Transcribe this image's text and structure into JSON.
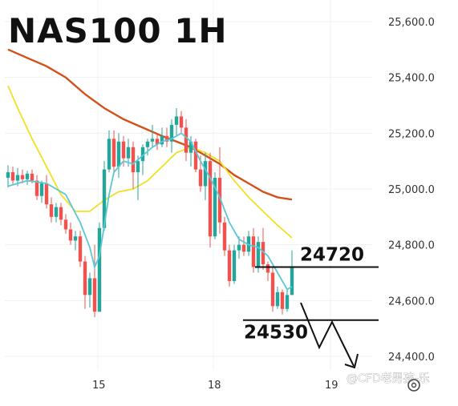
{
  "chart_data": {
    "type": "candlestick",
    "title": "NAS100 1H",
    "y_ticks": [
      "25,600.0",
      "25,400.0",
      "25,200.0",
      "25,000.0",
      "24,800.0",
      "24,600.0",
      "24,400.0"
    ],
    "x_ticks": [
      "15",
      "18",
      "19"
    ],
    "ylim": [
      24320,
      25640
    ],
    "grid": true,
    "colors": {
      "up": "#26a69a",
      "down": "#ef5350",
      "ma_fast": "#5bc8d6",
      "ma_mid": "#f2e021",
      "ma_slow": "#d2501a"
    },
    "candles": [
      {
        "o": 25040,
        "h": 25085,
        "l": 25005,
        "c": 25060
      },
      {
        "o": 25060,
        "h": 25080,
        "l": 25015,
        "c": 25030
      },
      {
        "o": 25030,
        "h": 25075,
        "l": 25010,
        "c": 25050
      },
      {
        "o": 25050,
        "h": 25070,
        "l": 25020,
        "c": 25035
      },
      {
        "o": 25035,
        "h": 25065,
        "l": 25015,
        "c": 25055
      },
      {
        "o": 25055,
        "h": 25070,
        "l": 25020,
        "c": 25030
      },
      {
        "o": 25030,
        "h": 25050,
        "l": 24960,
        "c": 24975
      },
      {
        "o": 24975,
        "h": 25030,
        "l": 24950,
        "c": 25020
      },
      {
        "o": 25020,
        "h": 25050,
        "l": 24930,
        "c": 24945
      },
      {
        "o": 24945,
        "h": 24970,
        "l": 24880,
        "c": 24900
      },
      {
        "o": 24900,
        "h": 24950,
        "l": 24880,
        "c": 24935
      },
      {
        "o": 24935,
        "h": 24950,
        "l": 24870,
        "c": 24890
      },
      {
        "o": 24890,
        "h": 24910,
        "l": 24840,
        "c": 24855
      },
      {
        "o": 24855,
        "h": 24880,
        "l": 24800,
        "c": 24815
      },
      {
        "o": 24815,
        "h": 24850,
        "l": 24780,
        "c": 24830
      },
      {
        "o": 24830,
        "h": 24850,
        "l": 24720,
        "c": 24740
      },
      {
        "o": 24740,
        "h": 24760,
        "l": 24570,
        "c": 24620
      },
      {
        "o": 24620,
        "h": 24700,
        "l": 24575,
        "c": 24680
      },
      {
        "o": 24680,
        "h": 24800,
        "l": 24540,
        "c": 24560
      },
      {
        "o": 24560,
        "h": 24880,
        "l": 24560,
        "c": 24860
      },
      {
        "o": 24860,
        "h": 25100,
        "l": 24850,
        "c": 25070
      },
      {
        "o": 25070,
        "h": 25210,
        "l": 25060,
        "c": 25180
      },
      {
        "o": 25180,
        "h": 25210,
        "l": 25050,
        "c": 25080
      },
      {
        "o": 25080,
        "h": 25200,
        "l": 25040,
        "c": 25170
      },
      {
        "o": 25170,
        "h": 25190,
        "l": 25080,
        "c": 25110
      },
      {
        "o": 25110,
        "h": 25180,
        "l": 25080,
        "c": 25150
      },
      {
        "o": 25150,
        "h": 25170,
        "l": 25000,
        "c": 25060
      },
      {
        "o": 25060,
        "h": 25120,
        "l": 24960,
        "c": 25100
      },
      {
        "o": 25100,
        "h": 25160,
        "l": 25050,
        "c": 25150
      },
      {
        "o": 25150,
        "h": 25180,
        "l": 25120,
        "c": 25170
      },
      {
        "o": 25170,
        "h": 25230,
        "l": 25150,
        "c": 25180
      },
      {
        "o": 25180,
        "h": 25200,
        "l": 25140,
        "c": 25160
      },
      {
        "o": 25160,
        "h": 25220,
        "l": 25150,
        "c": 25190
      },
      {
        "o": 25190,
        "h": 25220,
        "l": 25150,
        "c": 25170
      },
      {
        "o": 25170,
        "h": 25250,
        "l": 25130,
        "c": 25230
      },
      {
        "o": 25230,
        "h": 25290,
        "l": 25190,
        "c": 25260
      },
      {
        "o": 25260,
        "h": 25280,
        "l": 25200,
        "c": 25220
      },
      {
        "o": 25220,
        "h": 25250,
        "l": 25100,
        "c": 25130
      },
      {
        "o": 25130,
        "h": 25190,
        "l": 25080,
        "c": 25170
      },
      {
        "o": 25170,
        "h": 25180,
        "l": 25060,
        "c": 25070
      },
      {
        "o": 25070,
        "h": 25120,
        "l": 24990,
        "c": 25010
      },
      {
        "o": 25010,
        "h": 25130,
        "l": 24960,
        "c": 25100
      },
      {
        "o": 25100,
        "h": 25130,
        "l": 24790,
        "c": 24830
      },
      {
        "o": 24830,
        "h": 25060,
        "l": 24820,
        "c": 25040
      },
      {
        "o": 25040,
        "h": 25150,
        "l": 24840,
        "c": 24880
      },
      {
        "o": 24880,
        "h": 24900,
        "l": 24760,
        "c": 24780
      },
      {
        "o": 24780,
        "h": 24800,
        "l": 24650,
        "c": 24670
      },
      {
        "o": 24670,
        "h": 24800,
        "l": 24660,
        "c": 24780
      },
      {
        "o": 24780,
        "h": 24830,
        "l": 24750,
        "c": 24800
      },
      {
        "o": 24800,
        "h": 24830,
        "l": 24760,
        "c": 24775
      },
      {
        "o": 24775,
        "h": 24850,
        "l": 24760,
        "c": 24830
      },
      {
        "o": 24830,
        "h": 24860,
        "l": 24700,
        "c": 24720
      },
      {
        "o": 24720,
        "h": 24830,
        "l": 24700,
        "c": 24810
      },
      {
        "o": 24810,
        "h": 24860,
        "l": 24710,
        "c": 24730
      },
      {
        "o": 24730,
        "h": 24740,
        "l": 24670,
        "c": 24700
      },
      {
        "o": 24700,
        "h": 24720,
        "l": 24560,
        "c": 24580
      },
      {
        "o": 24580,
        "h": 24650,
        "l": 24570,
        "c": 24630
      },
      {
        "o": 24630,
        "h": 24640,
        "l": 24550,
        "c": 24570
      },
      {
        "o": 24570,
        "h": 24640,
        "l": 24560,
        "c": 24620
      },
      {
        "o": 24620,
        "h": 24780,
        "l": 24620,
        "c": 24720
      }
    ],
    "ma_fast": [
      [
        0,
        25010
      ],
      [
        4,
        25030
      ],
      [
        8,
        25020
      ],
      [
        12,
        24980
      ],
      [
        15,
        24880
      ],
      [
        17,
        24790
      ],
      [
        18,
        24720
      ],
      [
        19,
        24760
      ],
      [
        20,
        24870
      ],
      [
        21,
        24980
      ],
      [
        22,
        25060
      ],
      [
        24,
        25100
      ],
      [
        26,
        25090
      ],
      [
        28,
        25120
      ],
      [
        30,
        25150
      ],
      [
        32,
        25170
      ],
      [
        34,
        25180
      ],
      [
        36,
        25200
      ],
      [
        38,
        25170
      ],
      [
        40,
        25100
      ],
      [
        42,
        25040
      ],
      [
        44,
        24970
      ],
      [
        46,
        24880
      ],
      [
        48,
        24820
      ],
      [
        50,
        24800
      ],
      [
        52,
        24790
      ],
      [
        54,
        24760
      ],
      [
        56,
        24700
      ],
      [
        58,
        24640
      ],
      [
        59,
        24650
      ]
    ],
    "ma_mid": [
      [
        0,
        25370
      ],
      [
        2,
        25290
      ],
      [
        5,
        25180
      ],
      [
        8,
        25080
      ],
      [
        11,
        24980
      ],
      [
        14,
        24920
      ],
      [
        17,
        24920
      ],
      [
        20,
        24960
      ],
      [
        23,
        24990
      ],
      [
        26,
        25000
      ],
      [
        29,
        25030
      ],
      [
        32,
        25080
      ],
      [
        35,
        25130
      ],
      [
        38,
        25150
      ],
      [
        41,
        25130
      ],
      [
        44,
        25100
      ],
      [
        47,
        25030
      ],
      [
        50,
        24970
      ],
      [
        53,
        24920
      ],
      [
        56,
        24870
      ],
      [
        59,
        24825
      ]
    ],
    "ma_slow": [
      [
        0,
        25500
      ],
      [
        4,
        25470
      ],
      [
        8,
        25440
      ],
      [
        12,
        25400
      ],
      [
        16,
        25340
      ],
      [
        20,
        25290
      ],
      [
        24,
        25250
      ],
      [
        28,
        25220
      ],
      [
        32,
        25190
      ],
      [
        35,
        25170
      ],
      [
        38,
        25150
      ],
      [
        41,
        25120
      ],
      [
        44,
        25090
      ],
      [
        47,
        25050
      ],
      [
        50,
        25020
      ],
      [
        53,
        24990
      ],
      [
        56,
        24970
      ],
      [
        59,
        24962
      ]
    ],
    "levels": [
      {
        "value": 24720,
        "label": "24720"
      },
      {
        "value": 24530,
        "label": "24530"
      }
    ]
  },
  "watermark": "@CFD老男孩-乐"
}
